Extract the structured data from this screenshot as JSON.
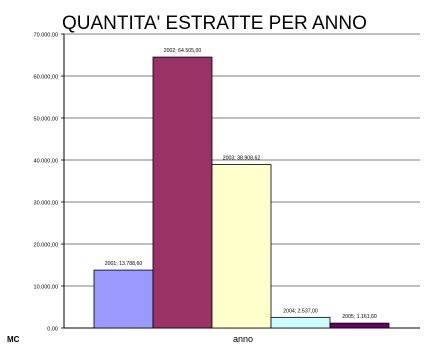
{
  "chart_data": {
    "type": "bar",
    "title": "QUANTITA' ESTRATTE PER ANNO",
    "xlabel": "anno",
    "ylabel": "MC",
    "ylim": [
      0,
      70000
    ],
    "yticks": [
      0,
      10000,
      20000,
      30000,
      40000,
      50000,
      60000,
      70000
    ],
    "ytick_labels": [
      "0,00",
      "10.000,00",
      "20.000,00",
      "30.000,00",
      "40.000,00",
      "50.000,00",
      "60.000,00",
      "70.000,00"
    ],
    "grid": true,
    "legend": "none",
    "categories": [
      "2001",
      "2002",
      "2003",
      "2004",
      "2005"
    ],
    "values": [
      13788.6,
      64505.0,
      38908.62,
      2537.0,
      1161.6
    ],
    "data_labels": [
      "2001; 13.788,60",
      "2002; 64.505,00",
      "2003; 38.908,62",
      "2004; 2.537,00",
      "2005; 1.161,60"
    ],
    "colors": [
      "#9999ff",
      "#993366",
      "#ffffcc",
      "#ccffff",
      "#660066"
    ]
  }
}
